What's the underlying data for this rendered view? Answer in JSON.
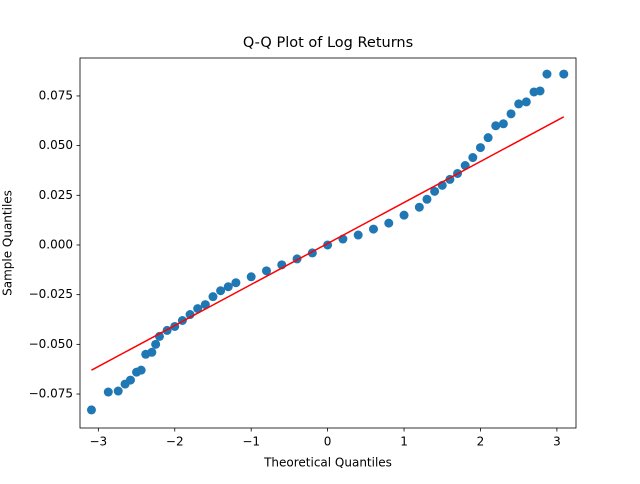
{
  "chart_data": {
    "type": "scatter",
    "title": "Q-Q Plot of Log Returns",
    "xlabel": "Theoretical Quantiles",
    "ylabel": "Sample Quantiles",
    "color": "#1f77b4",
    "x": [
      -3.09,
      -2.87,
      -2.74,
      -2.65,
      -2.58,
      -2.5,
      -2.44,
      -2.38,
      -2.3,
      -2.25,
      -2.2,
      -2.1,
      -2.0,
      -1.9,
      -1.8,
      -1.7,
      -1.6,
      -1.5,
      -1.4,
      -1.3,
      -1.2,
      -1.0,
      -0.8,
      -0.6,
      -0.4,
      -0.2,
      0,
      0.2,
      0.4,
      0.6,
      0.8,
      1.0,
      1.2,
      1.3,
      1.4,
      1.5,
      1.6,
      1.7,
      1.8,
      1.9,
      2.0,
      2.1,
      2.2,
      2.3,
      2.4,
      2.5,
      2.6,
      2.7,
      2.78,
      2.87,
      3.09
    ],
    "values": [
      -0.083,
      -0.074,
      -0.0735,
      -0.07,
      -0.068,
      -0.064,
      -0.063,
      -0.055,
      -0.054,
      -0.05,
      -0.046,
      -0.043,
      -0.041,
      -0.038,
      -0.035,
      -0.032,
      -0.03,
      -0.026,
      -0.023,
      -0.021,
      -0.019,
      -0.016,
      -0.013,
      -0.01,
      -0.007,
      -0.004,
      0,
      0.003,
      0.005,
      0.008,
      0.011,
      0.015,
      0.019,
      0.023,
      0.027,
      0.03,
      0.033,
      0.036,
      0.04,
      0.044,
      0.049,
      0.054,
      0.06,
      0.061,
      0.066,
      0.071,
      0.072,
      0.077,
      0.0775,
      0.086,
      0.086
    ],
    "reference_line": {
      "x": [
        -3.09,
        3.09
      ],
      "values": [
        -0.063,
        0.0645
      ],
      "color": "#ff0000"
    },
    "xlim": [
      -3.24,
      3.25
    ],
    "ylim": [
      -0.0921,
      0.0941
    ],
    "xticks": [
      {
        "value": -3,
        "label": "−3"
      },
      {
        "value": -2,
        "label": "−2"
      },
      {
        "value": -1,
        "label": "−1"
      },
      0,
      1,
      2,
      3
    ],
    "yticks": [
      {
        "value": -0.075,
        "label": "−0.075"
      },
      {
        "value": -0.05,
        "label": "−0.050"
      },
      {
        "value": -0.025,
        "label": "−0.025"
      },
      {
        "value": 0,
        "label": "0.000"
      },
      0.025,
      {
        "value": 0.05,
        "label": "0.050"
      },
      0.075
    ],
    "grid": false
  }
}
